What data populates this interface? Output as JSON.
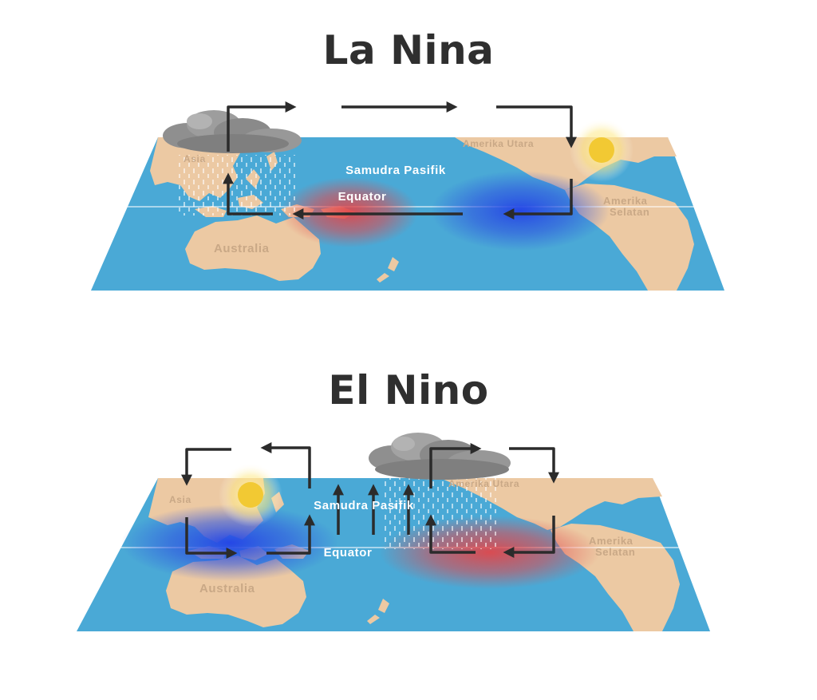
{
  "panels": {
    "la_nina": {
      "title": "La Nina",
      "ocean_label": "Samudra Pasifik",
      "equator_label": "Equator",
      "labels": {
        "asia": "Asia",
        "australia": "Australia",
        "north_america": "Amerika Utara",
        "south_america_1": "Amerika",
        "south_america_2": "Selatan"
      }
    },
    "el_nino": {
      "title": "El Nino",
      "ocean_label": "Samudra Pasifik",
      "equator_label": "Equator",
      "labels": {
        "asia": "Asia",
        "australia": "Australia",
        "north_america": "Amerika Utara",
        "south_america_1": "Amerika",
        "south_america_2": "Selatan"
      }
    }
  },
  "colors": {
    "ocean": "#4aa9d6",
    "land": "#ecc9a3",
    "warm": "#e0474b",
    "cool": "#2f55e0",
    "arrow": "#2b2b2b",
    "sun": "#f2c933",
    "cloud": "#8f8f8f"
  },
  "icons": [
    "sun-icon",
    "cloud-icon",
    "rain-icon",
    "arrow-icon"
  ]
}
